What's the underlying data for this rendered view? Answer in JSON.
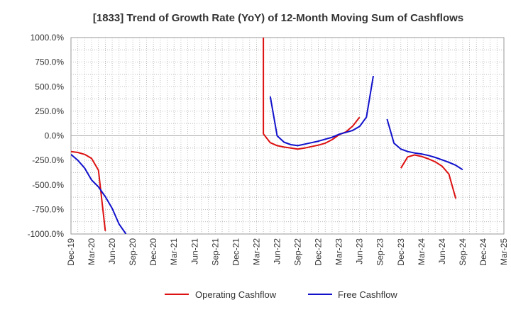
{
  "chart_data": {
    "type": "line",
    "title": "[1833]  Trend of Growth Rate (YoY) of 12-Month Moving Sum of Cashflows",
    "xlabel": "",
    "ylabel": "",
    "x_ticks": [
      "Dec-19",
      "Mar-20",
      "Jun-20",
      "Sep-20",
      "Dec-20",
      "Mar-21",
      "Jun-21",
      "Sep-21",
      "Dec-21",
      "Mar-22",
      "Jun-22",
      "Sep-22",
      "Dec-22",
      "Mar-23",
      "Jun-23",
      "Sep-23",
      "Dec-23",
      "Mar-24",
      "Jun-24",
      "Sep-24",
      "Dec-24",
      "Mar-25"
    ],
    "y_ticks": [
      "1000.0%",
      "750.0%",
      "500.0%",
      "250.0%",
      "0.0%",
      "-250.0%",
      "-500.0%",
      "-750.0%",
      "-1000.0%"
    ],
    "ylim": [
      -1000,
      1000
    ],
    "xlim": [
      "2019-12",
      "2025-03"
    ],
    "grid": true,
    "legend_position": "bottom",
    "series": [
      {
        "name": "Operating Cashflow",
        "color": "#dd1111",
        "points": [
          [
            "2019-12",
            -160
          ],
          [
            "2020-01",
            -170
          ],
          [
            "2020-02",
            -190
          ],
          [
            "2020-03",
            -230
          ],
          [
            "2020-04",
            -350
          ],
          [
            "2020-05",
            -970
          ],
          null,
          [
            "2022-04",
            1000
          ],
          [
            "2022-04",
            20
          ],
          [
            "2022-05",
            -70
          ],
          [
            "2022-06",
            -100
          ],
          [
            "2022-07",
            -115
          ],
          [
            "2022-08",
            -125
          ],
          [
            "2022-09",
            -135
          ],
          [
            "2022-10",
            -125
          ],
          [
            "2022-11",
            -110
          ],
          [
            "2022-12",
            -95
          ],
          [
            "2023-01",
            -75
          ],
          [
            "2023-02",
            -40
          ],
          [
            "2023-03",
            10
          ],
          [
            "2023-04",
            40
          ],
          [
            "2023-05",
            100
          ],
          [
            "2023-06",
            190
          ],
          null,
          [
            "2023-12",
            -330
          ],
          [
            "2024-01",
            -215
          ],
          [
            "2024-02",
            -195
          ],
          [
            "2024-03",
            -210
          ],
          [
            "2024-04",
            -235
          ],
          [
            "2024-05",
            -265
          ],
          [
            "2024-06",
            -310
          ],
          [
            "2024-07",
            -390
          ],
          [
            "2024-08",
            -640
          ]
        ]
      },
      {
        "name": "Free Cashflow",
        "color": "#1111cc",
        "points": [
          [
            "2019-12",
            -190
          ],
          [
            "2020-01",
            -250
          ],
          [
            "2020-02",
            -330
          ],
          [
            "2020-03",
            -450
          ],
          [
            "2020-04",
            -520
          ],
          [
            "2020-05",
            -620
          ],
          [
            "2020-06",
            -740
          ],
          [
            "2020-07",
            -900
          ],
          [
            "2020-08",
            -1000
          ],
          null,
          [
            "2022-05",
            400
          ],
          [
            "2022-06",
            0
          ],
          [
            "2022-07",
            -65
          ],
          [
            "2022-08",
            -90
          ],
          [
            "2022-09",
            -100
          ],
          [
            "2022-10",
            -85
          ],
          [
            "2022-11",
            -70
          ],
          [
            "2022-12",
            -55
          ],
          [
            "2023-01",
            -35
          ],
          [
            "2023-02",
            -15
          ],
          [
            "2023-03",
            15
          ],
          [
            "2023-04",
            35
          ],
          [
            "2023-05",
            55
          ],
          [
            "2023-06",
            95
          ],
          [
            "2023-07",
            190
          ],
          [
            "2023-08",
            610
          ],
          null,
          [
            "2023-10",
            170
          ],
          [
            "2023-11",
            -75
          ],
          [
            "2023-12",
            -135
          ],
          [
            "2024-01",
            -160
          ],
          [
            "2024-02",
            -175
          ],
          [
            "2024-03",
            -185
          ],
          [
            "2024-04",
            -200
          ],
          [
            "2024-05",
            -220
          ],
          [
            "2024-06",
            -245
          ],
          [
            "2024-07",
            -270
          ],
          [
            "2024-08",
            -300
          ],
          [
            "2024-09",
            -345
          ]
        ]
      }
    ]
  },
  "legend": {
    "operating_label": "Operating Cashflow",
    "free_label": "Free Cashflow"
  }
}
